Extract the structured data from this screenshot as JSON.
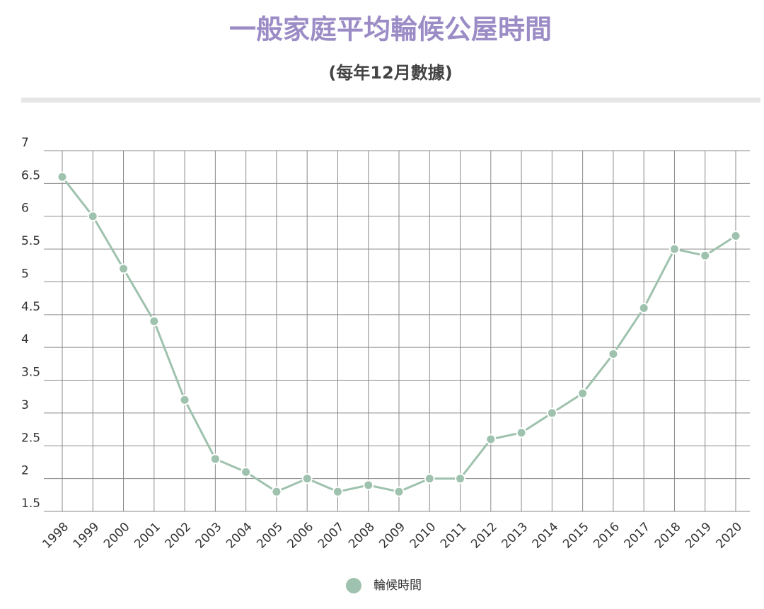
{
  "chart_data": {
    "type": "line",
    "title": "一般家庭平均輪候公屋時間",
    "subtitle": "(每年12月數據)",
    "categories": [
      "1998",
      "1999",
      "2000",
      "2001",
      "2002",
      "2003",
      "2004",
      "2005",
      "2006",
      "2007",
      "2008",
      "2009",
      "2010",
      "2011",
      "2012",
      "2013",
      "2014",
      "2015",
      "2016",
      "2017",
      "2018",
      "2019",
      "2020"
    ],
    "series": [
      {
        "name": "輪候時間",
        "color": "#9ec2ad",
        "values": [
          6.6,
          6.0,
          5.2,
          4.4,
          3.2,
          2.3,
          2.1,
          1.8,
          2.0,
          1.8,
          1.9,
          1.8,
          2.0,
          2.0,
          2.6,
          2.7,
          3.0,
          3.3,
          3.9,
          4.6,
          5.5,
          5.4,
          5.7
        ]
      }
    ],
    "ylim": [
      1.5,
      7
    ],
    "yticks": [
      1.5,
      2,
      2.5,
      3,
      3.5,
      4,
      4.5,
      5,
      5.5,
      6,
      6.5,
      7
    ],
    "grid": true,
    "legend": "bottom"
  }
}
